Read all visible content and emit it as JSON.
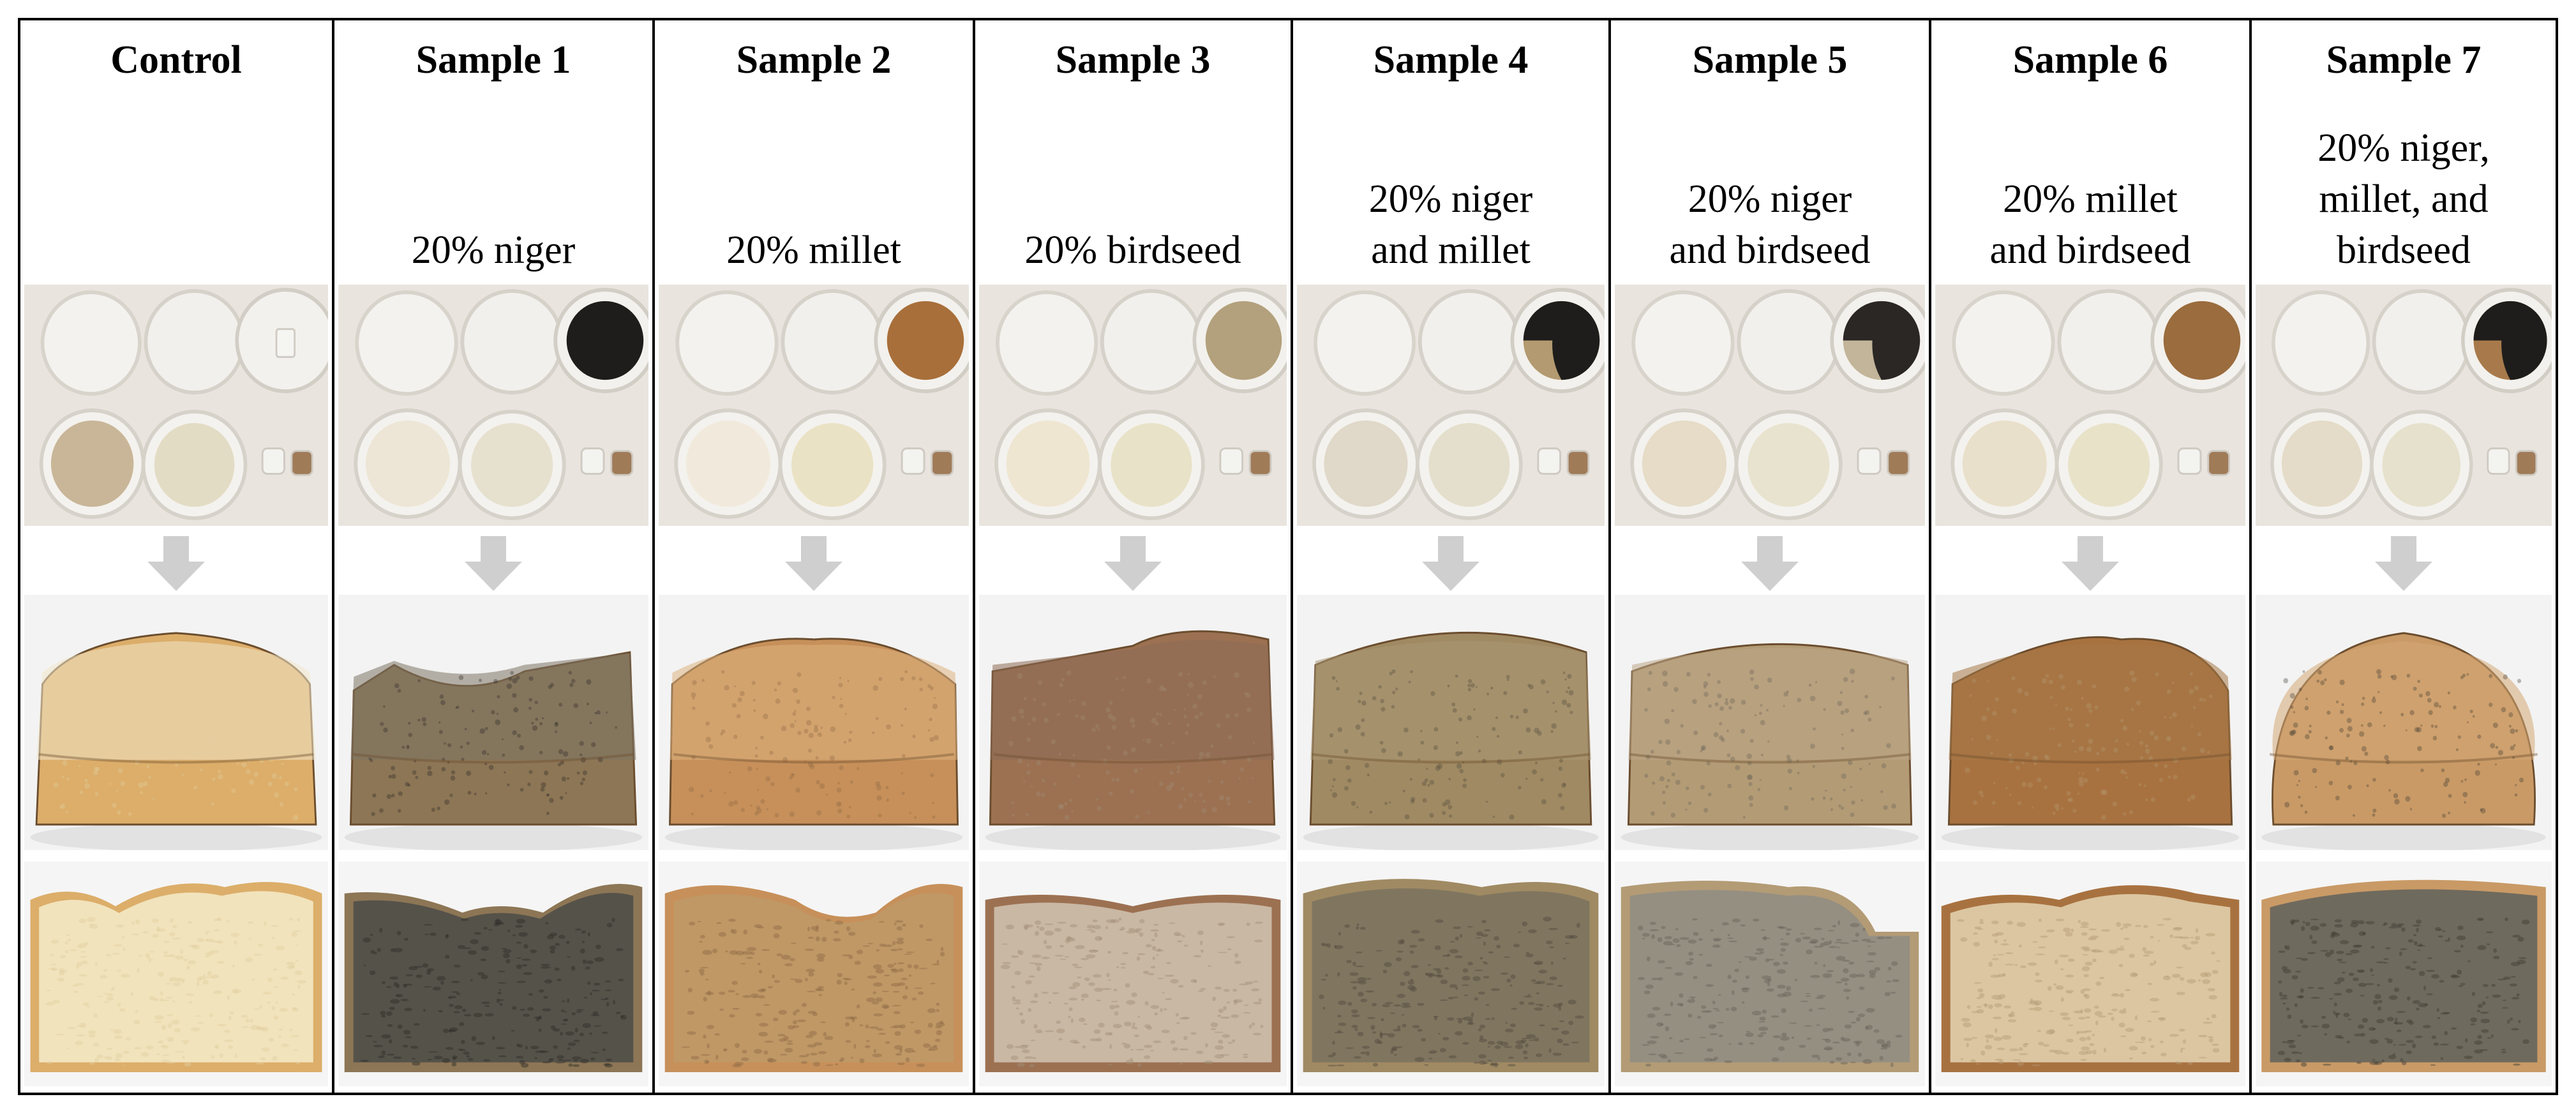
{
  "samples": [
    {
      "title": "Control",
      "desc": "",
      "seed": "none",
      "seed_colors": [],
      "flour": "#c9b698",
      "water": "#e3dcc5",
      "crust": "#dcae6a",
      "crumb": "#f1e3bc",
      "speck": "#e3cf9f",
      "lid": "#f1e6c8"
    },
    {
      "title": "Sample 1",
      "desc": "20% niger",
      "seed": "niger",
      "seed_colors": [
        "#1e1d1b"
      ],
      "flour": "#ede6d6",
      "water": "#e6e0ce",
      "crust": "#8d7655",
      "crumb": "#55524a",
      "speck": "#2e2c28",
      "lid": "#7e7565"
    },
    {
      "title": "Sample 2",
      "desc": "20% millet",
      "seed": "millet",
      "seed_colors": [
        "#a86f3a"
      ],
      "flour": "#f1eadc",
      "water": "#eae2c4",
      "crust": "#c7905a",
      "crumb": "#bf9866",
      "speck": "#8f6b45",
      "lid": "#dcb27f"
    },
    {
      "title": "Sample 3",
      "desc": "20% birdseed",
      "seed": "birdseed",
      "seed_colors": [
        "#b3a17d"
      ],
      "flour": "#efe6d2",
      "water": "#e8e2c8",
      "crust": "#9c7152",
      "crumb": "#c9b8a4",
      "speck": "#a18f78",
      "lid": "#8e6b55"
    },
    {
      "title": "Sample 4",
      "desc": "20% niger\nand millet",
      "seed": "mix2",
      "seed_colors": [
        "#1e1d1b",
        "#b39a70"
      ],
      "flour": "#e0d8c8",
      "water": "#e4dfcc",
      "crust": "#a08a63",
      "crumb": "#807660",
      "speck": "#514a3d",
      "lid": "#aa9775"
    },
    {
      "title": "Sample 5",
      "desc": "20% niger\nand birdseed",
      "seed": "mix2",
      "seed_colors": [
        "#2a2724",
        "#c3b59a"
      ],
      "flour": "#e6dcc7",
      "water": "#e8e3cf",
      "crust": "#b39b75",
      "crumb": "#958f82",
      "speck": "#676259",
      "lid": "#bba686"
    },
    {
      "title": "Sample 6",
      "desc": "20% millet\nand birdseed",
      "seed": "millet",
      "seed_colors": [
        "#9a6c3e"
      ],
      "flour": "#e9e0cb",
      "water": "#e8e2c9",
      "crust": "#a87240",
      "crumb": "#dbc6a1",
      "speck": "#b49a73",
      "lid": "#a67847"
    },
    {
      "title": "Sample 7",
      "desc": "20% niger,\nmillet, and\nbirdseed",
      "seed": "mix3",
      "seed_colors": [
        "#1e1d1b",
        "#a87a4b"
      ],
      "flour": "#e4dcc8",
      "water": "#e6e1cd",
      "crust": "#c99a66",
      "crumb": "#6f6a5e",
      "speck": "#3f3b33",
      "lid": "#d3a775"
    }
  ]
}
